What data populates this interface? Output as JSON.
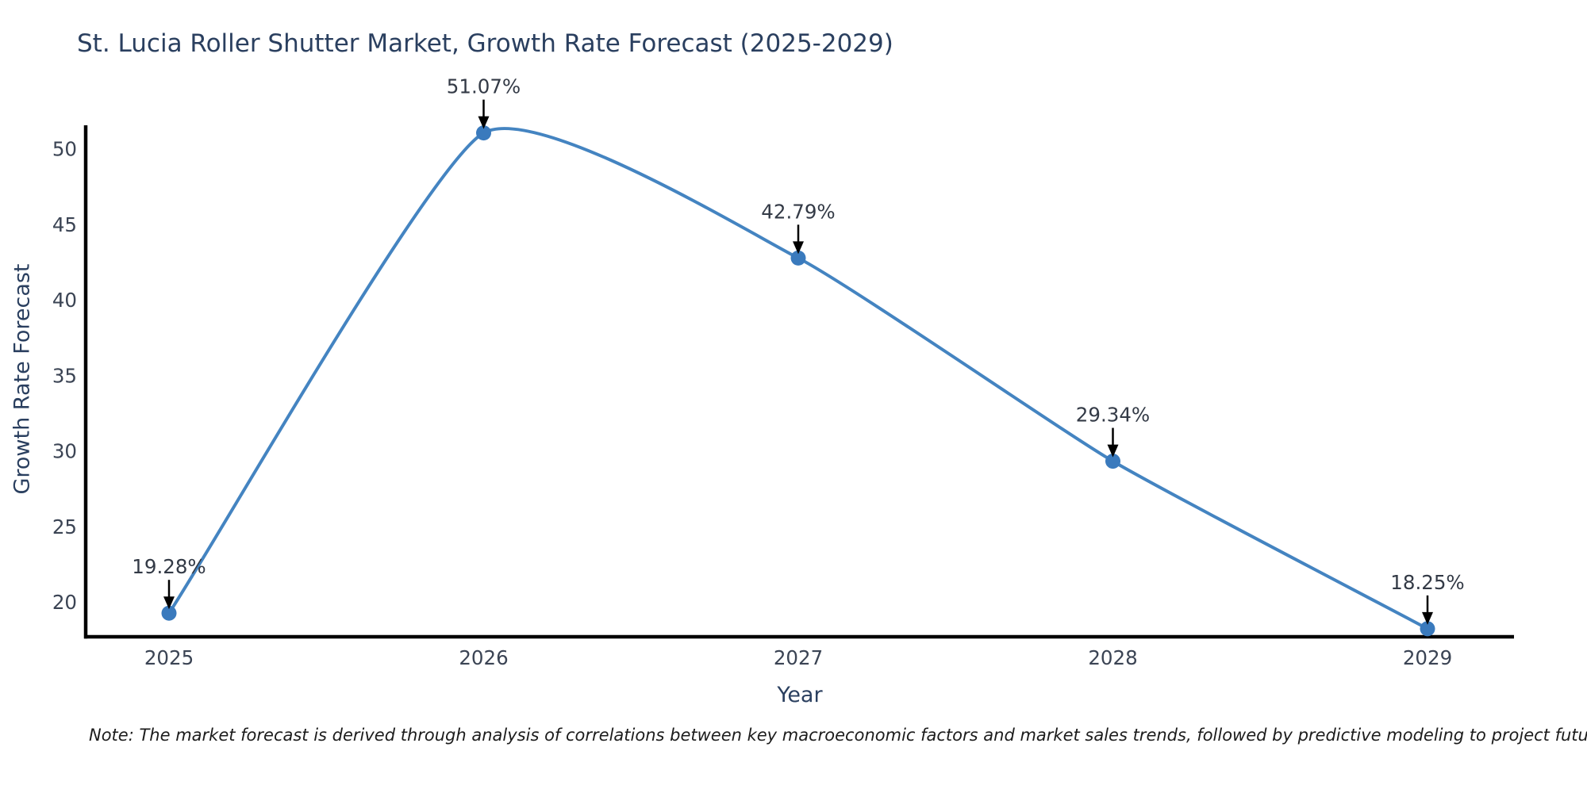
{
  "chart_data": {
    "type": "line",
    "title": "St. Lucia Roller Shutter Market, Growth Rate Forecast (2025-2029)",
    "xlabel": "Year",
    "ylabel": "Growth Rate Forecast",
    "categories": [
      "2025",
      "2026",
      "2027",
      "2028",
      "2029"
    ],
    "series": [
      {
        "name": "Growth Rate Forecast",
        "values": [
          19.28,
          51.07,
          42.79,
          29.34,
          18.25
        ],
        "point_labels": [
          "19.28%",
          "51.07%",
          "42.79%",
          "29.34%",
          "18.25%"
        ]
      }
    ],
    "yticks": [
      20,
      25,
      30,
      35,
      40,
      45,
      50
    ],
    "ylim": [
      17.6,
      51.6
    ],
    "grid": false,
    "legend_position": "none",
    "line_style": "smooth-spline",
    "marker": "circle",
    "annotation_arrows": true,
    "colors": {
      "line": "#4484c1",
      "marker": "#3a7abd",
      "axis": "#000000",
      "tick_text": "#3b4454",
      "annotation_text": "#333a46",
      "arrow": "#000000",
      "title_text": "#2a3f5f"
    }
  },
  "note": "Note: The market forecast is derived through analysis of correlations between key macroeconomic factors and market sales trends, followed by predictive modeling to project future sales."
}
